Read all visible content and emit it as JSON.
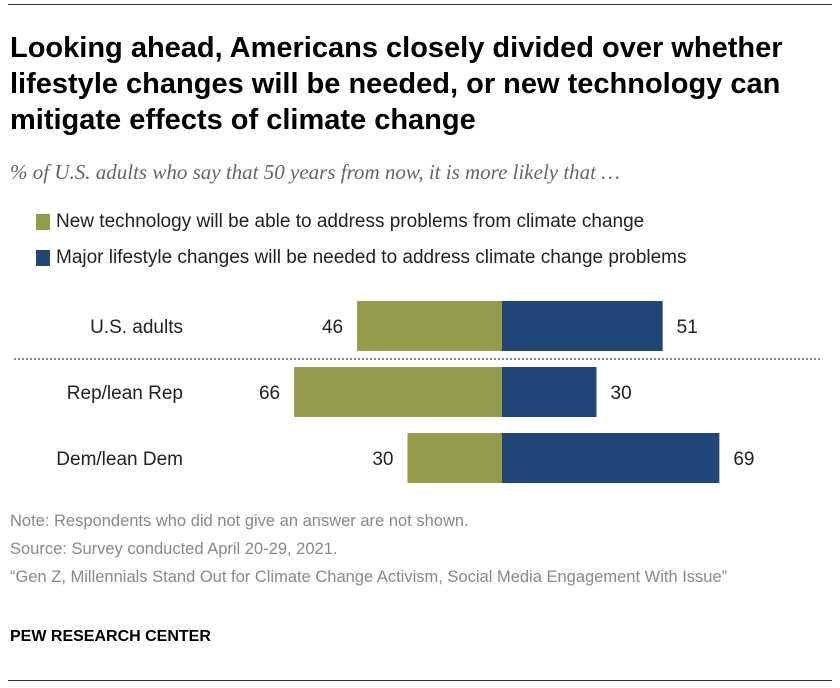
{
  "title": "Looking ahead, Americans closely divided over whether lifestyle changes will be needed, or new technology can mitigate effects of climate change",
  "subtitle": "% of U.S. adults who say that 50 years from now, it is more likely that …",
  "notes": [
    "Note: Respondents who did not give an answer are not shown.",
    "Source: Survey conducted April 20-29, 2021.",
    "“Gen Z, Millennials Stand Out for Climate Change Activism, Social Media Engagement With Issue”"
  ],
  "brand": "PEW RESEARCH CENTER",
  "chart_data": {
    "type": "bar",
    "orientation": "horizontal diverging",
    "categories": [
      "U.S. adults",
      "Rep/lean Rep",
      "Dem/lean Dem"
    ],
    "series": [
      {
        "name": "New technology will be able to address problems from climate change",
        "values": [
          46,
          66,
          30
        ],
        "color": "#949b4a"
      },
      {
        "name": "Major lifestyle changes will be needed to address climate change problems",
        "values": [
          51,
          30,
          69
        ],
        "color": "#204778"
      }
    ],
    "legend": "top-left"
  }
}
